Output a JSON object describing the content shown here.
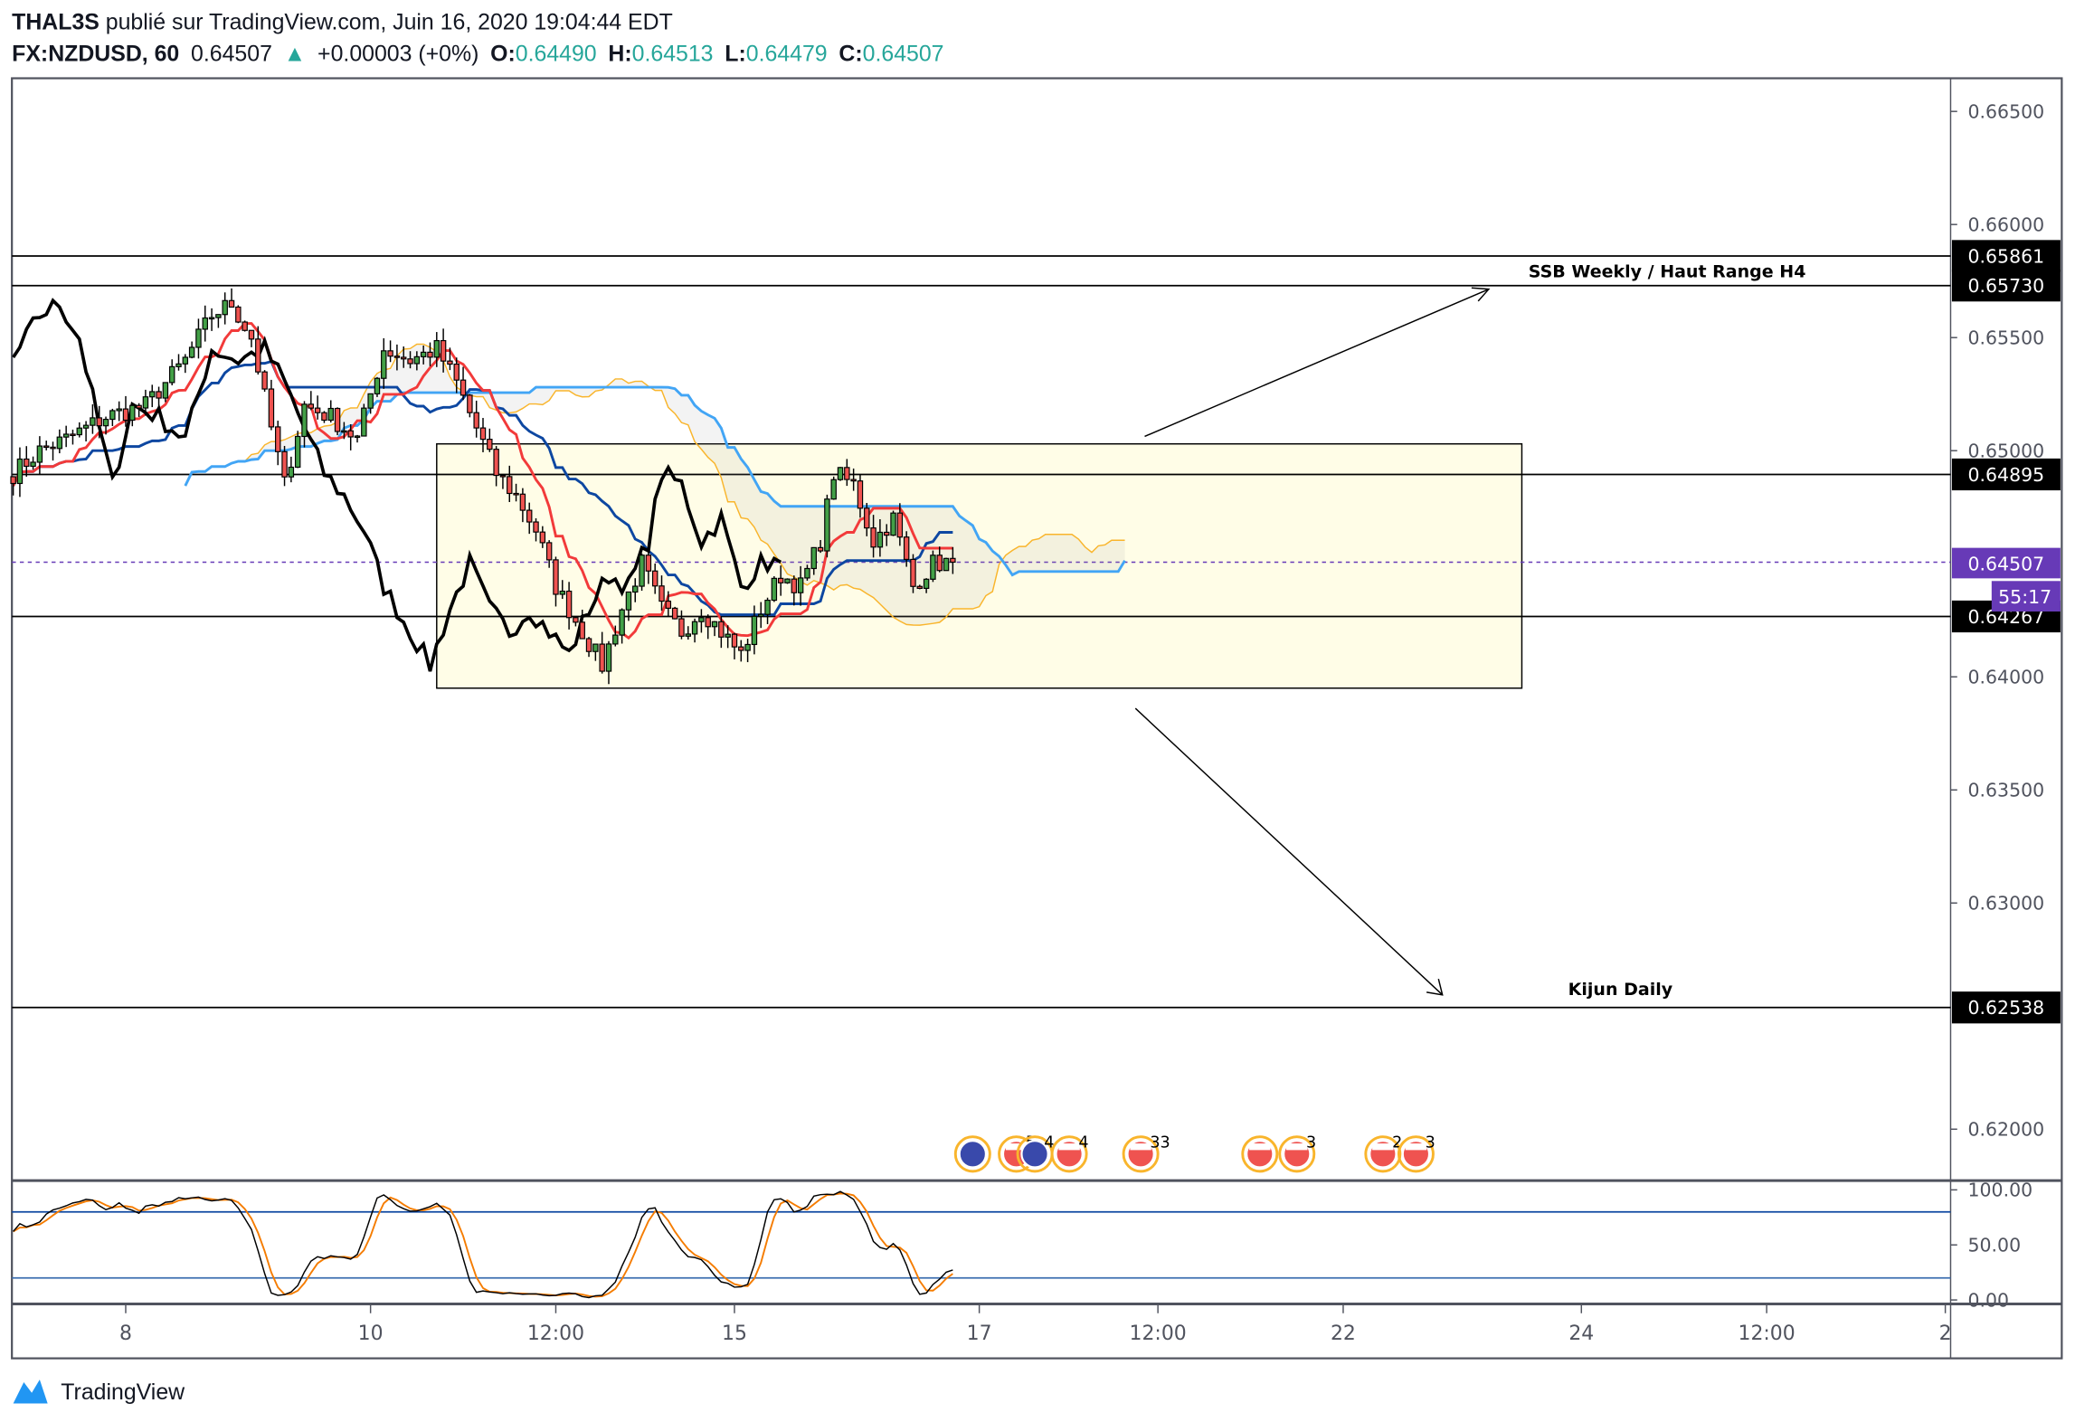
{
  "header": {
    "author": "THAL3S",
    "published_on": " publié sur TradingView.com, Juin 16, 2020 19:04:44 EDT",
    "symbol": "FX:NZDUSD, 60",
    "last": "0.64507",
    "change": "+0.00003 (+0%)",
    "o_label": "O:",
    "o": "0.64490",
    "h_label": "H:",
    "h": "0.64513",
    "l_label": "L:",
    "l": "0.64479",
    "c_label": "C:",
    "c": "0.64507"
  },
  "colors": {
    "up": "#43a047",
    "down": "#ef5350",
    "tenkan": "#f23a3a",
    "kijun": "#0d47a1",
    "chikou": "#000000",
    "senkou_a": "#f9b52c",
    "senkou_b": "#42a5f5",
    "price_line": "#673ab7",
    "box_fill": "#fffde7",
    "stoch_k": "#000000",
    "stoch_d": "#f57c00"
  },
  "chart_data": {
    "type": "candlestick",
    "title": "FX:NZDUSD, 60",
    "price_axis": {
      "ylim": [
        0.6165,
        0.6675
      ],
      "ticks": [
        "0.66500",
        "0.66000",
        "0.65500",
        "0.65000",
        "0.64000",
        "0.63500",
        "0.63000",
        "0.62000"
      ]
    },
    "time_axis": {
      "ticks": [
        {
          "label": "8",
          "bar": 17
        },
        {
          "label": "10",
          "bar": 54
        },
        {
          "label": "12:00",
          "bar": 82
        },
        {
          "label": "15",
          "bar": 109
        },
        {
          "label": "17",
          "bar": 146
        },
        {
          "label": "12:00",
          "bar": 173
        },
        {
          "label": "22",
          "bar": 201
        },
        {
          "label": "24",
          "bar": 237
        },
        {
          "label": "12:00",
          "bar": 265
        },
        {
          "label": "2",
          "bar": 292
        }
      ]
    },
    "close_path": [
      [
        0,
        0.649
      ],
      [
        4,
        0.65
      ],
      [
        8,
        0.6505
      ],
      [
        14,
        0.6515
      ],
      [
        20,
        0.652
      ],
      [
        26,
        0.654
      ],
      [
        30,
        0.656
      ],
      [
        33,
        0.6565
      ],
      [
        36,
        0.655
      ],
      [
        39,
        0.651
      ],
      [
        41,
        0.6485
      ],
      [
        44,
        0.652
      ],
      [
        48,
        0.6515
      ],
      [
        52,
        0.6505
      ],
      [
        56,
        0.6545
      ],
      [
        60,
        0.654
      ],
      [
        64,
        0.6545
      ],
      [
        67,
        0.653
      ],
      [
        70,
        0.651
      ],
      [
        73,
        0.649
      ],
      [
        76,
        0.648
      ],
      [
        79,
        0.6465
      ],
      [
        82,
        0.644
      ],
      [
        86,
        0.642
      ],
      [
        89,
        0.6405
      ],
      [
        92,
        0.643
      ],
      [
        95,
        0.645
      ],
      [
        98,
        0.643
      ],
      [
        101,
        0.642
      ],
      [
        104,
        0.643
      ],
      [
        107,
        0.642
      ],
      [
        110,
        0.641
      ],
      [
        113,
        0.643
      ],
      [
        116,
        0.6445
      ],
      [
        119,
        0.644
      ],
      [
        122,
        0.646
      ],
      [
        124,
        0.649
      ],
      [
        127,
        0.6485
      ],
      [
        130,
        0.646
      ],
      [
        133,
        0.647
      ],
      [
        136,
        0.644
      ],
      [
        139,
        0.645
      ],
      [
        142,
        0.6451
      ]
    ],
    "last_price": 0.64507,
    "levels": [
      {
        "price": 0.65861,
        "label": "0.65861"
      },
      {
        "price": 0.6573,
        "label": "0.65730"
      },
      {
        "price": 0.64895,
        "label": "0.64895"
      },
      {
        "price": 0.64267,
        "label": "0.64267"
      },
      {
        "price": 0.62538,
        "label": "0.62538"
      }
    ],
    "range_box": {
      "top": 0.6503,
      "bottom": 0.6395,
      "from_bar": 64,
      "to_bar": 228
    },
    "annotations": [
      "SSB Weekly / Haut Range H4",
      "Kijun Daily"
    ],
    "countdown": "55:17",
    "oscillator": {
      "ticks": [
        "100.00",
        "50.00",
        "0.00"
      ],
      "ylim": [
        0,
        100
      ],
      "bands": [
        80,
        20
      ]
    },
    "events": [
      {
        "flag": "nz",
        "count": ""
      },
      {
        "flag": "us",
        "count": "5"
      },
      {
        "flag": "nz",
        "count": "4"
      },
      {
        "flag": "us",
        "count": "4"
      },
      {
        "flag": "us",
        "count": "33"
      },
      {
        "flag": "us",
        "count": ""
      },
      {
        "flag": "us",
        "count": "3"
      },
      {
        "flag": "us",
        "count": "2"
      },
      {
        "flag": "us",
        "count": "3"
      }
    ]
  },
  "footer": {
    "brand": "TradingView"
  }
}
